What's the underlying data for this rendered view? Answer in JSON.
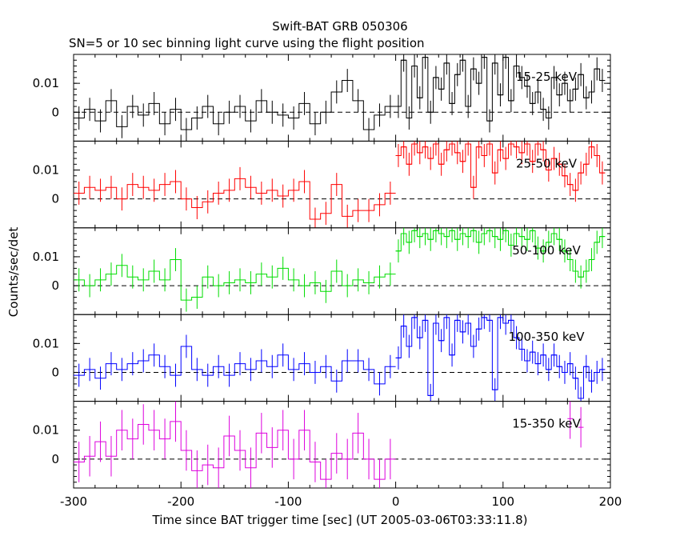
{
  "chart_data": {
    "type": "line",
    "title": "Swift-BAT GRB 050306",
    "subtitle": "SN=5 or 10 sec binning light curve using the flight position",
    "xlabel": "Time since BAT trigger time [sec] (UT 2005-03-06T03:33:11.8)",
    "ylabel": "Counts/sec/det",
    "xlim": [
      -300,
      200
    ],
    "ylim": [
      -0.01,
      0.02
    ],
    "x_ticks": [
      -300,
      -200,
      -100,
      0,
      100,
      200
    ],
    "y_ticks": [
      0,
      0.01
    ],
    "y_tick_labels": [
      "0",
      "0.01"
    ],
    "panels": [
      {
        "band": "15-25 keV",
        "color": "#000000",
        "pre_x": [
          -300,
          -290,
          -280,
          -270,
          -260,
          -250,
          -240,
          -230,
          -220,
          -210,
          -200,
          -190,
          -180,
          -170,
          -160,
          -150,
          -140,
          -130,
          -120,
          -110,
          -100,
          -90,
          -80,
          -70,
          -60,
          -50,
          -40,
          -30,
          -20,
          -10
        ],
        "pre_y": [
          -0.002,
          0.001,
          -0.003,
          0.004,
          -0.005,
          0.002,
          -0.001,
          0.003,
          -0.004,
          0.001,
          -0.006,
          -0.002,
          0.002,
          -0.004,
          0.0,
          0.002,
          -0.003,
          0.004,
          0.0,
          -0.001,
          -0.002,
          0.003,
          -0.004,
          0.0,
          0.007,
          0.011,
          0.004,
          -0.006,
          -0.001,
          0.002
        ],
        "post_x": [
          0,
          5,
          10,
          15,
          20,
          25,
          30,
          35,
          40,
          45,
          50,
          55,
          60,
          65,
          70,
          75,
          80,
          85,
          90,
          95,
          100,
          105,
          110,
          115,
          120,
          125,
          130,
          135,
          140,
          145,
          150,
          155,
          160,
          165,
          170,
          175,
          180,
          185,
          190
        ],
        "post_y": [
          0.002,
          0.018,
          -0.002,
          0.016,
          0.005,
          0.019,
          0.0,
          0.012,
          0.008,
          0.017,
          0.003,
          0.013,
          0.018,
          0.002,
          0.015,
          0.01,
          0.019,
          -0.003,
          0.017,
          0.006,
          0.019,
          0.004,
          0.016,
          0.012,
          0.009,
          0.003,
          0.007,
          0.001,
          -0.002,
          0.012,
          0.006,
          0.01,
          0.004,
          0.008,
          0.013,
          0.005,
          0.007,
          0.015,
          0.011
        ],
        "err": 0.004
      },
      {
        "band": "25-50 keV",
        "color": "#ff0000",
        "pre_x": [
          -300,
          -290,
          -280,
          -270,
          -260,
          -250,
          -240,
          -230,
          -220,
          -210,
          -200,
          -190,
          -180,
          -170,
          -160,
          -150,
          -140,
          -130,
          -120,
          -110,
          -100,
          -90,
          -80,
          -70,
          -60,
          -50,
          -40,
          -30,
          -20,
          -10
        ],
        "pre_y": [
          0.002,
          0.004,
          0.003,
          0.004,
          0.0,
          0.005,
          0.004,
          0.003,
          0.005,
          0.006,
          0.0,
          -0.003,
          -0.001,
          0.002,
          0.003,
          0.007,
          0.004,
          0.002,
          0.003,
          0.001,
          0.003,
          0.006,
          -0.007,
          -0.005,
          0.005,
          -0.006,
          -0.004,
          -0.004,
          -0.002,
          0.002
        ],
        "post_x": [
          0,
          5,
          10,
          15,
          20,
          25,
          30,
          35,
          40,
          45,
          50,
          55,
          60,
          65,
          70,
          75,
          80,
          85,
          90,
          95,
          100,
          105,
          110,
          115,
          120,
          125,
          130,
          135,
          140,
          145,
          150,
          155,
          160,
          165,
          170,
          175,
          180,
          185,
          190
        ],
        "post_y": [
          0.015,
          0.018,
          0.012,
          0.019,
          0.016,
          0.018,
          0.014,
          0.019,
          0.012,
          0.017,
          0.019,
          0.016,
          0.013,
          0.019,
          0.004,
          0.018,
          0.015,
          0.019,
          0.009,
          0.017,
          0.014,
          0.019,
          0.018,
          0.016,
          0.019,
          0.013,
          0.019,
          0.017,
          0.01,
          0.014,
          0.012,
          0.008,
          0.005,
          0.003,
          0.009,
          0.012,
          0.018,
          0.015,
          0.009
        ],
        "err": 0.004
      },
      {
        "band": "50-100 keV",
        "color": "#00dd00",
        "pre_x": [
          -300,
          -290,
          -280,
          -270,
          -260,
          -250,
          -240,
          -230,
          -220,
          -210,
          -200,
          -190,
          -180,
          -170,
          -160,
          -150,
          -140,
          -130,
          -120,
          -110,
          -100,
          -90,
          -80,
          -70,
          -60,
          -50,
          -40,
          -30,
          -20,
          -10
        ],
        "pre_y": [
          0.002,
          0.0,
          0.002,
          0.004,
          0.007,
          0.003,
          0.002,
          0.005,
          0.002,
          0.009,
          -0.005,
          -0.004,
          0.003,
          0.0,
          0.001,
          0.002,
          0.001,
          0.004,
          0.003,
          0.006,
          0.002,
          0.0,
          0.001,
          -0.002,
          0.005,
          0.0,
          0.002,
          0.001,
          0.003,
          0.004
        ],
        "post_x": [
          0,
          5,
          10,
          15,
          20,
          25,
          30,
          35,
          40,
          45,
          50,
          55,
          60,
          65,
          70,
          75,
          80,
          85,
          90,
          95,
          100,
          105,
          110,
          115,
          120,
          125,
          130,
          135,
          140,
          145,
          150,
          155,
          160,
          165,
          170,
          175,
          180,
          185,
          190
        ],
        "post_y": [
          0.012,
          0.018,
          0.015,
          0.019,
          0.017,
          0.018,
          0.016,
          0.019,
          0.018,
          0.017,
          0.019,
          0.016,
          0.018,
          0.017,
          0.019,
          0.015,
          0.018,
          0.019,
          0.017,
          0.016,
          0.019,
          0.014,
          0.018,
          0.017,
          0.016,
          0.019,
          0.013,
          0.012,
          0.015,
          0.018,
          0.016,
          0.012,
          0.009,
          0.005,
          0.003,
          0.005,
          0.009,
          0.015,
          0.017
        ],
        "err": 0.004
      },
      {
        "band": "100-350 keV",
        "color": "#0000ff",
        "pre_x": [
          -300,
          -290,
          -280,
          -270,
          -260,
          -250,
          -240,
          -230,
          -220,
          -210,
          -200,
          -190,
          -180,
          -170,
          -160,
          -150,
          -140,
          -130,
          -120,
          -110,
          -100,
          -90,
          -80,
          -70,
          -60,
          -50,
          -40,
          -30,
          -20,
          -10
        ],
        "pre_y": [
          -0.001,
          0.001,
          -0.002,
          0.003,
          0.001,
          0.003,
          0.004,
          0.006,
          0.002,
          -0.001,
          0.009,
          0.001,
          -0.001,
          0.002,
          -0.001,
          0.003,
          0.001,
          0.004,
          0.002,
          0.006,
          0.001,
          0.003,
          0.0,
          0.002,
          -0.003,
          0.004,
          0.004,
          0.001,
          -0.004,
          0.002
        ],
        "post_x": [
          0,
          5,
          10,
          15,
          20,
          25,
          30,
          35,
          40,
          45,
          50,
          55,
          60,
          65,
          70,
          75,
          80,
          85,
          90,
          95,
          100,
          105,
          110,
          115,
          120,
          125,
          130,
          135,
          140,
          145,
          150,
          155,
          160,
          165,
          170,
          175,
          180,
          185,
          190
        ],
        "post_y": [
          0.005,
          0.016,
          0.009,
          0.019,
          0.012,
          0.018,
          -0.008,
          0.017,
          0.011,
          0.019,
          0.006,
          0.018,
          0.014,
          0.017,
          0.009,
          0.015,
          0.019,
          0.018,
          -0.006,
          0.019,
          0.017,
          0.018,
          0.012,
          0.008,
          0.004,
          0.007,
          0.003,
          0.006,
          0.001,
          0.006,
          0.002,
          0.0,
          0.003,
          -0.002,
          -0.009,
          0.002,
          -0.003,
          0.0,
          0.001
        ],
        "err": 0.004
      },
      {
        "band": "15-350 keV",
        "color": "#dd00dd",
        "pre_x": [
          -300,
          -290,
          -280,
          -270,
          -260,
          -250,
          -240,
          -230,
          -220,
          -210,
          -200,
          -190,
          -180,
          -170,
          -160,
          -150,
          -140,
          -130,
          -120,
          -110,
          -100,
          -90,
          -80,
          -70,
          -60,
          -50,
          -40,
          -30,
          -20,
          -10
        ],
        "pre_y": [
          -0.001,
          0.001,
          0.006,
          0.001,
          0.01,
          0.007,
          0.012,
          0.01,
          0.007,
          0.013,
          0.003,
          -0.004,
          -0.002,
          -0.003,
          0.008,
          0.003,
          -0.003,
          0.009,
          0.004,
          0.01,
          0.0,
          0.01,
          -0.001,
          -0.007,
          0.002,
          0.0,
          0.009,
          0.0,
          -0.007,
          0.0
        ],
        "post_x": [
          160,
          170
        ],
        "post_y": [
          0.014,
          0.011
        ],
        "err": 0.007
      }
    ]
  }
}
